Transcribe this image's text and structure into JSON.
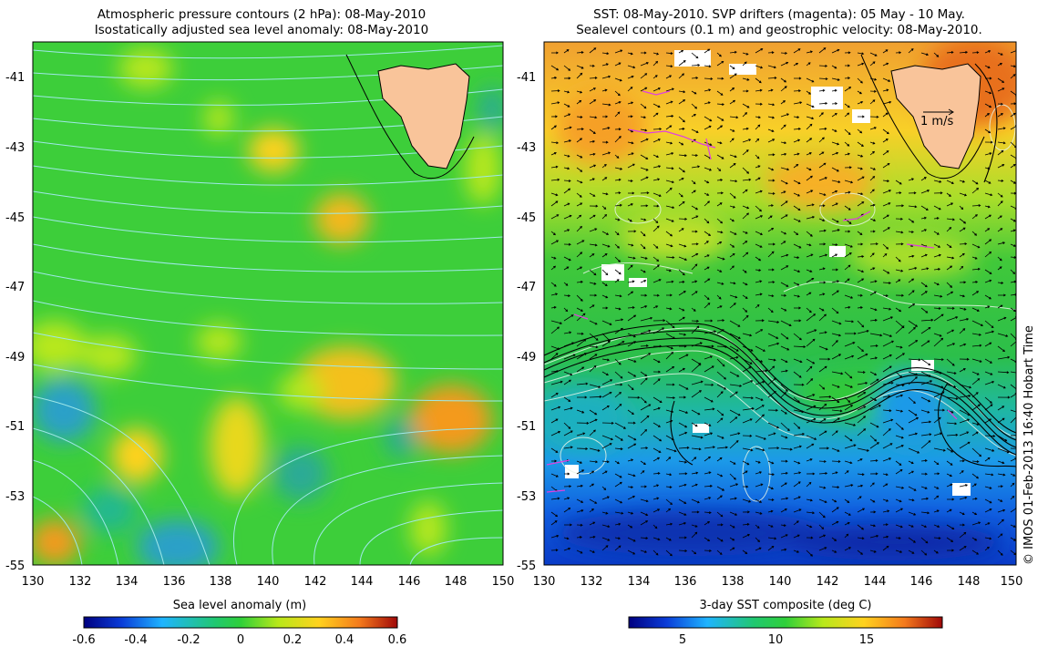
{
  "left_panel": {
    "title_line1": "Atmospheric pressure contours (2 hPa): 08-May-2010",
    "title_line2": "Isostatically adjusted sea level anomaly: 08-May-2010",
    "colorbar_label": "Sea level anomaly (m)",
    "colorbar_ticks": [
      "-0.6",
      "-0.4",
      "-0.2",
      "0",
      "0.2",
      "0.4",
      "0.6"
    ]
  },
  "right_panel": {
    "title_line1": "SST: 08-May-2010. SVP drifters (magenta): 05 May - 10 May.",
    "title_line2": "Sealevel contours (0.1 m) and geostrophic velocity: 08-May-2010.",
    "colorbar_label": "3-day SST composite (deg C)",
    "colorbar_ticks": [
      "5",
      "10",
      "15"
    ],
    "velocity_scale_label": "1 m/s"
  },
  "axes": {
    "x_ticks": [
      "130",
      "132",
      "134",
      "136",
      "138",
      "140",
      "142",
      "144",
      "146",
      "148",
      "150"
    ],
    "y_ticks": [
      "-41",
      "-43",
      "-45",
      "-47",
      "-49",
      "-51",
      "-53",
      "-55"
    ]
  },
  "credit": "© IMOS 01-Feb-2013 16:40 Hobart Time",
  "colors": {
    "land": "#f9c49a",
    "pressure_contour": "#9fe8e8",
    "sla_background": "#3dce3a",
    "sst_background": "#2fbf3a",
    "drifter": "#e040e0"
  }
}
